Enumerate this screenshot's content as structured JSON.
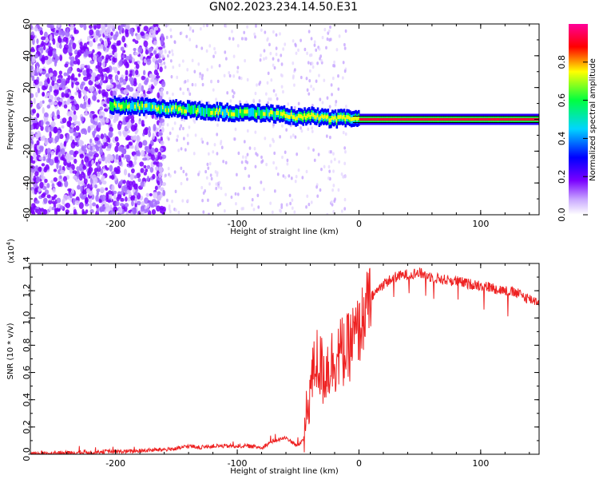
{
  "page": {
    "title": "GN02.2023.234.14.50.E31"
  },
  "colors": {
    "snr_line": "#ee2222",
    "colormap": [
      "#ffffff",
      "#7a00ff",
      "#0000ff",
      "#00d5ff",
      "#00ff40",
      "#ffff00",
      "#ff0000",
      "#ff0099"
    ]
  },
  "chart_data": [
    {
      "type": "heatmap",
      "xlabel": "Height of straight line (km)",
      "ylabel": "Frequency (Hz)",
      "xlim": [
        -270,
        148
      ],
      "ylim": [
        -60,
        60
      ],
      "x_ticks": [
        -200,
        -100,
        0,
        100
      ],
      "x_tick_labels": [
        "-200",
        "-100",
        "0",
        "100"
      ],
      "y_ticks": [
        -60,
        -40,
        -20,
        0,
        20,
        40,
        60
      ],
      "y_tick_labels": [
        "-60",
        "-40",
        "-20",
        "0",
        "20",
        "40",
        "60"
      ],
      "ridge": {
        "x": [
          -200,
          -180,
          -160,
          -140,
          -120,
          -100,
          -80,
          -60,
          -50,
          -40,
          -30,
          -20,
          -10,
          0,
          50,
          100,
          148
        ],
        "y": [
          9,
          8,
          7,
          6,
          5,
          4,
          4,
          3,
          1,
          2,
          1,
          0,
          1,
          0,
          0,
          0,
          0
        ]
      },
      "colorbar": {
        "label": "Normalized spectral amplitude",
        "range": [
          0,
          1
        ],
        "ticks": [
          0.0,
          0.2,
          0.4,
          0.6,
          0.8
        ],
        "tick_labels": [
          "0.0",
          "0.2",
          "0.4",
          "0.6",
          "0.8"
        ]
      }
    },
    {
      "type": "line",
      "xlabel": "Height of straight line (km)",
      "ylabel": "SNR (10 * v/v)",
      "multiplier_label": "(x10",
      "multiplier_exp": "4",
      "multiplier_close": ")",
      "xlim": [
        -270,
        148
      ],
      "ylim": [
        0,
        1.4
      ],
      "x_ticks": [
        -200,
        -100,
        0,
        100
      ],
      "x_tick_labels": [
        "-200",
        "-100",
        "0",
        "100"
      ],
      "y_ticks": [
        0.0,
        0.2,
        0.4,
        0.6,
        0.8,
        1.0,
        1.2,
        1.4
      ],
      "y_tick_labels": [
        "0.0",
        "0.2",
        "0.4",
        "0.6",
        "0.8",
        "1.0",
        "1.2",
        "1.4"
      ],
      "series": [
        {
          "x": [
            -270,
            -250,
            -230,
            -210,
            -190,
            -170,
            -150,
            -140,
            -130,
            -120,
            -110,
            -100,
            -90,
            -80,
            -70,
            -60,
            -50,
            -45,
            -40,
            -35,
            -30,
            -25,
            -20,
            -15,
            -10,
            -5,
            0,
            5,
            10,
            20,
            30,
            40,
            50,
            60,
            70,
            80,
            90,
            100,
            110,
            120,
            130,
            140,
            148
          ],
          "y": [
            0.0,
            0.01,
            0.01,
            0.02,
            0.02,
            0.03,
            0.04,
            0.06,
            0.05,
            0.06,
            0.06,
            0.06,
            0.06,
            0.05,
            0.1,
            0.12,
            0.06,
            0.12,
            0.5,
            0.7,
            0.6,
            0.65,
            0.7,
            0.75,
            0.75,
            0.85,
            0.9,
            1.05,
            1.15,
            1.25,
            1.3,
            1.32,
            1.33,
            1.3,
            1.28,
            1.27,
            1.25,
            1.24,
            1.22,
            1.2,
            1.18,
            1.14,
            1.12
          ]
        }
      ]
    }
  ]
}
